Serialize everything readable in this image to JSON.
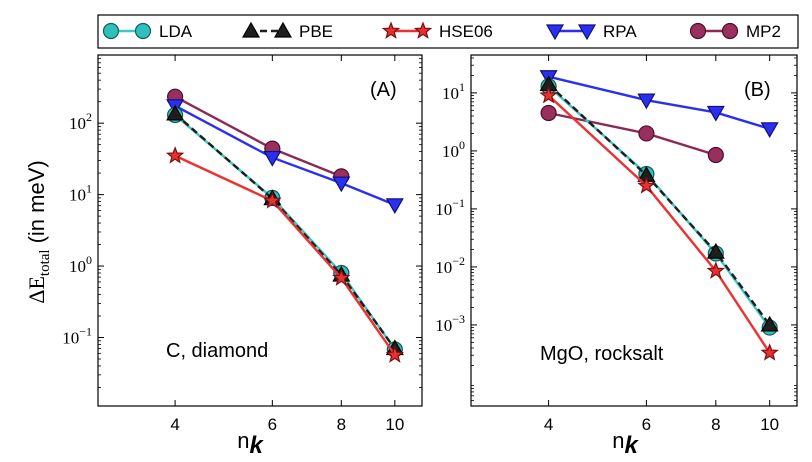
{
  "chart_data": [
    {
      "type": "line",
      "panel_label": "(A)",
      "annotation": "C, diamond",
      "xlabel": "n",
      "xlabel_sub": "k",
      "ylabel": "ΔE",
      "ylabel_sub": "total",
      "ylabel_units": "(in meV)",
      "yscale": "log",
      "xscale": "log",
      "xlim": [
        2.9,
        11.2
      ],
      "ylim": [
        0.011,
        900
      ],
      "x_ticks": [
        4,
        6,
        8,
        10
      ],
      "x_tick_labels": [
        "4",
        "6",
        "8",
        "10"
      ],
      "y_ticks": [
        0.1,
        1,
        10,
        100
      ],
      "y_tick_labels": [
        {
          "base": "10",
          "exp": "−1"
        },
        {
          "base": "10",
          "exp": "0"
        },
        {
          "base": "10",
          "exp": "1"
        },
        {
          "base": "10",
          "exp": "2"
        }
      ],
      "series": [
        {
          "name": "LDA",
          "x": [
            4,
            6,
            8,
            10
          ],
          "values": [
            130,
            9.0,
            0.8,
            0.068
          ]
        },
        {
          "name": "PBE",
          "x": [
            4,
            6,
            8,
            10
          ],
          "values": [
            135,
            8.8,
            0.75,
            0.07
          ]
        },
        {
          "name": "HSE06",
          "x": [
            4,
            6,
            8,
            10
          ],
          "values": [
            35,
            8.2,
            0.68,
            0.057
          ]
        },
        {
          "name": "RPA",
          "x": [
            4,
            6,
            8,
            10
          ],
          "values": [
            175,
            33,
            14.5,
            7.2
          ]
        },
        {
          "name": "MP2",
          "x": [
            4,
            6,
            8
          ],
          "values": [
            235,
            44,
            18
          ]
        }
      ]
    },
    {
      "type": "line",
      "panel_label": "(B)",
      "annotation": "MgO, rocksalt",
      "xlabel": "n",
      "xlabel_sub": "k",
      "yscale": "log",
      "xscale": "log",
      "xlim": [
        2.9,
        11.2
      ],
      "ylim": [
        4e-05,
        45
      ],
      "x_ticks": [
        4,
        6,
        8,
        10
      ],
      "x_tick_labels": [
        "4",
        "6",
        "8",
        "10"
      ],
      "y_ticks": [
        0.001,
        0.01,
        0.1,
        1,
        10
      ],
      "y_tick_labels": [
        {
          "base": "10",
          "exp": "−3"
        },
        {
          "base": "10",
          "exp": "−2"
        },
        {
          "base": "10",
          "exp": "−1"
        },
        {
          "base": "10",
          "exp": "0"
        },
        {
          "base": "10",
          "exp": "1"
        }
      ],
      "series": [
        {
          "name": "LDA",
          "x": [
            4,
            6,
            8,
            10
          ],
          "values": [
            13,
            0.4,
            0.017,
            0.0009
          ]
        },
        {
          "name": "PBE",
          "x": [
            4,
            6,
            8,
            10
          ],
          "values": [
            14,
            0.38,
            0.018,
            0.001
          ]
        },
        {
          "name": "HSE06",
          "x": [
            4,
            6,
            8,
            10
          ],
          "values": [
            9,
            0.25,
            0.0085,
            0.00033
          ]
        },
        {
          "name": "RPA",
          "x": [
            4,
            6,
            8,
            10
          ],
          "values": [
            19,
            7.5,
            4.6,
            2.4
          ]
        },
        {
          "name": "MP2",
          "x": [
            4,
            6,
            8
          ],
          "values": [
            4.5,
            2.0,
            0.85
          ]
        }
      ]
    }
  ],
  "legend": [
    {
      "name": "LDA",
      "line_color": "#3cc8c0",
      "face_color": "#2ec0bc",
      "edge_color": "#1a5a58",
      "marker": "circle",
      "dashed": false
    },
    {
      "name": "PBE",
      "line_color": "#1e1e1e",
      "face_color": "#1e1e1e",
      "edge_color": "#000000",
      "marker": "triangle-up",
      "dashed": true
    },
    {
      "name": "HSE06",
      "line_color": "#ee3030",
      "face_color": "#e83030",
      "edge_color": "#7a1010",
      "marker": "star",
      "dashed": false
    },
    {
      "name": "RPA",
      "line_color": "#2b2ff0",
      "face_color": "#2b2ff0",
      "edge_color": "#10107a",
      "marker": "triangle-down",
      "dashed": false
    },
    {
      "name": "MP2",
      "line_color": "#8c2a55",
      "face_color": "#9a2f5e",
      "edge_color": "#4a1030",
      "marker": "circle",
      "dashed": false
    }
  ]
}
